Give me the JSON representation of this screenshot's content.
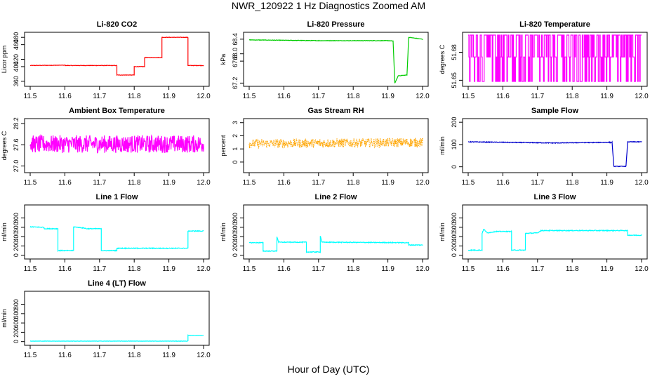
{
  "figure": {
    "title": "NWR_120922  1 Hz Diagnostics Zoomed AM",
    "xlabel": "Hour of Day (UTC)"
  },
  "chart_data": [
    {
      "type": "line",
      "title": "Li-820 CO2",
      "ylabel": "Licor ppm",
      "color": "#ff0000",
      "xlim": [
        11.5,
        12.0
      ],
      "xticks": [
        "11.5",
        "11.6",
        "11.7",
        "11.8",
        "11.9",
        "12.0"
      ],
      "ylim": [
        350,
        490
      ],
      "yticks": [
        360,
        400,
        420,
        460,
        480
      ],
      "yticklabels": [
        "360",
        "400",
        "420",
        "460",
        "480"
      ],
      "noise": 0.6,
      "points": [
        [
          11.5,
          403
        ],
        [
          11.6,
          404
        ],
        [
          11.6,
          403
        ],
        [
          11.75,
          403
        ],
        [
          11.75,
          377
        ],
        [
          11.8,
          377
        ],
        [
          11.8,
          400
        ],
        [
          11.83,
          400
        ],
        [
          11.83,
          425
        ],
        [
          11.88,
          425
        ],
        [
          11.88,
          480
        ],
        [
          11.955,
          480
        ],
        [
          11.955,
          403
        ],
        [
          12.0,
          403
        ]
      ]
    },
    {
      "type": "line",
      "title": "Li-820 Pressure",
      "ylabel": "kPa",
      "color": "#00cc00",
      "xlim": [
        11.5,
        12.0
      ],
      "xticks": [
        "11.5",
        "11.6",
        "11.7",
        "11.8",
        "11.9",
        "12.0"
      ],
      "ylim": [
        67.15,
        68.55
      ],
      "yticks": [
        67.2,
        67.8,
        68.0,
        68.4
      ],
      "yticklabels": [
        "67.2",
        "67.8",
        "68.0",
        "68.4"
      ],
      "noise": 0.006,
      "points": [
        [
          11.5,
          68.38
        ],
        [
          11.7,
          68.36
        ],
        [
          11.9,
          68.36
        ],
        [
          11.915,
          68.35
        ],
        [
          11.92,
          67.2
        ],
        [
          11.93,
          67.4
        ],
        [
          11.955,
          67.42
        ],
        [
          11.96,
          68.45
        ],
        [
          12.0,
          68.4
        ]
      ]
    },
    {
      "type": "line",
      "title": "Li-820 Temperature",
      "ylabel": "degrees C",
      "color": "#ff00ff",
      "xlim": [
        11.5,
        12.0
      ],
      "xticks": [
        "11.5",
        "11.6",
        "11.7",
        "11.8",
        "11.9",
        "12.0"
      ],
      "ylim": [
        51.645,
        51.7
      ],
      "yticks": [
        51.65,
        51.68
      ],
      "yticklabels": [
        "51.65",
        "51.68"
      ],
      "levels": [
        51.6488,
        51.675,
        51.6985
      ],
      "points": []
    },
    {
      "type": "line",
      "title": "Ambient Box Temperature",
      "ylabel": "degrees C",
      "color": "#ff00ff",
      "xlim": [
        11.5,
        12.0
      ],
      "xticks": [
        "11.5",
        "11.6",
        "11.7",
        "11.8",
        "11.9",
        "12.0"
      ],
      "ylim": [
        26.85,
        28.3
      ],
      "yticks": [
        27.0,
        27.6,
        28.2
      ],
      "yticklabels": [
        "27.0",
        "27.6",
        "28.2"
      ],
      "noise": 0.25,
      "points": [
        [
          11.5,
          27.62
        ],
        [
          12.0,
          27.62
        ]
      ]
    },
    {
      "type": "scatter",
      "title": "Gas Stream RH",
      "ylabel": "percent",
      "color": "#ffa500",
      "xlim": [
        11.5,
        12.0
      ],
      "xticks": [
        "11.5",
        "11.6",
        "11.7",
        "11.8",
        "11.9",
        "12.0"
      ],
      "ylim": [
        -0.7,
        3.2
      ],
      "yticks": [
        0,
        1,
        2,
        3
      ],
      "yticklabels": [
        "0",
        "1",
        "2",
        "3"
      ],
      "noise": 0.35,
      "points": [
        [
          11.5,
          1.4
        ],
        [
          12.0,
          1.5
        ]
      ]
    },
    {
      "type": "line",
      "title": "Sample Flow",
      "ylabel": "ml/min",
      "color": "#0000cc",
      "xlim": [
        11.5,
        12.0
      ],
      "xticks": [
        "11.5",
        "11.6",
        "11.7",
        "11.8",
        "11.9",
        "12.0"
      ],
      "ylim": [
        -20,
        210
      ],
      "yticks": [
        0,
        100,
        200
      ],
      "yticklabels": [
        "0",
        "100",
        "200"
      ],
      "noise": 1.5,
      "points": [
        [
          11.5,
          112
        ],
        [
          11.75,
          107
        ],
        [
          11.91,
          110
        ],
        [
          11.915,
          110
        ],
        [
          11.92,
          2
        ],
        [
          11.955,
          2
        ],
        [
          11.96,
          112
        ],
        [
          12.0,
          112
        ]
      ]
    },
    {
      "type": "line",
      "title": "Line 1 Flow",
      "ylabel": "ml/min",
      "color": "#00ffff",
      "xlim": [
        11.5,
        12.0
      ],
      "xticks": [
        "11.5",
        "11.6",
        "11.7",
        "11.8",
        "11.9",
        "12.0"
      ],
      "ylim": [
        -50,
        1050
      ],
      "yticks": [
        0,
        200,
        400,
        600,
        800
      ],
      "yticklabels": [
        "0",
        "200",
        "400",
        "600",
        "800"
      ],
      "noise": 8,
      "points": [
        [
          11.5,
          610
        ],
        [
          11.54,
          600
        ],
        [
          11.54,
          570
        ],
        [
          11.58,
          570
        ],
        [
          11.58,
          100
        ],
        [
          11.625,
          100
        ],
        [
          11.625,
          610
        ],
        [
          11.66,
          580
        ],
        [
          11.66,
          570
        ],
        [
          11.705,
          570
        ],
        [
          11.705,
          100
        ],
        [
          11.75,
          100
        ],
        [
          11.75,
          150
        ],
        [
          11.955,
          150
        ],
        [
          11.955,
          520
        ],
        [
          12.0,
          520
        ]
      ]
    },
    {
      "type": "line",
      "title": "Line 2 Flow",
      "ylabel": "ml/min",
      "color": "#00ffff",
      "xlim": [
        11.5,
        12.0
      ],
      "xticks": [
        "11.5",
        "11.6",
        "11.7",
        "11.8",
        "11.9",
        "12.0"
      ],
      "ylim": [
        -50,
        1050
      ],
      "yticks": [
        0,
        200,
        400,
        600,
        800
      ],
      "yticklabels": [
        "0",
        "200",
        "400",
        "600",
        "800"
      ],
      "noise": 8,
      "points": [
        [
          11.5,
          270
        ],
        [
          11.54,
          270
        ],
        [
          11.54,
          90
        ],
        [
          11.58,
          90
        ],
        [
          11.58,
          400
        ],
        [
          11.585,
          280
        ],
        [
          11.665,
          280
        ],
        [
          11.665,
          70
        ],
        [
          11.705,
          70
        ],
        [
          11.705,
          420
        ],
        [
          11.71,
          280
        ],
        [
          11.96,
          270
        ],
        [
          11.96,
          220
        ],
        [
          12.0,
          220
        ]
      ]
    },
    {
      "type": "line",
      "title": "Line 3 Flow",
      "ylabel": "ml/min",
      "color": "#00ffff",
      "xlim": [
        11.5,
        12.0
      ],
      "xticks": [
        "11.5",
        "11.6",
        "11.7",
        "11.8",
        "11.9",
        "12.0"
      ],
      "ylim": [
        -50,
        1050
      ],
      "yticks": [
        0,
        200,
        400,
        600,
        800
      ],
      "yticklabels": [
        "0",
        "200",
        "400",
        "600",
        "800"
      ],
      "noise": 8,
      "points": [
        [
          11.5,
          110
        ],
        [
          11.54,
          110
        ],
        [
          11.54,
          470
        ],
        [
          11.545,
          560
        ],
        [
          11.555,
          480
        ],
        [
          11.58,
          510
        ],
        [
          11.625,
          510
        ],
        [
          11.625,
          110
        ],
        [
          11.665,
          110
        ],
        [
          11.665,
          470
        ],
        [
          11.7,
          480
        ],
        [
          11.71,
          530
        ],
        [
          11.96,
          530
        ],
        [
          11.96,
          430
        ],
        [
          12.0,
          430
        ]
      ]
    },
    {
      "type": "line",
      "title": "Line 4 (LT) Flow",
      "ylabel": "ml/min",
      "color": "#00ffff",
      "xlim": [
        11.5,
        12.0
      ],
      "xticks": [
        "11.5",
        "11.6",
        "11.7",
        "11.8",
        "11.9",
        "12.0"
      ],
      "ylim": [
        -50,
        1050
      ],
      "yticks": [
        0,
        200,
        400,
        600,
        800
      ],
      "yticklabels": [
        "0",
        "200",
        "400",
        "600",
        "800"
      ],
      "noise": 3,
      "points": [
        [
          11.5,
          10
        ],
        [
          11.955,
          10
        ],
        [
          11.955,
          140
        ],
        [
          11.96,
          130
        ],
        [
          12.0,
          130
        ]
      ]
    }
  ]
}
